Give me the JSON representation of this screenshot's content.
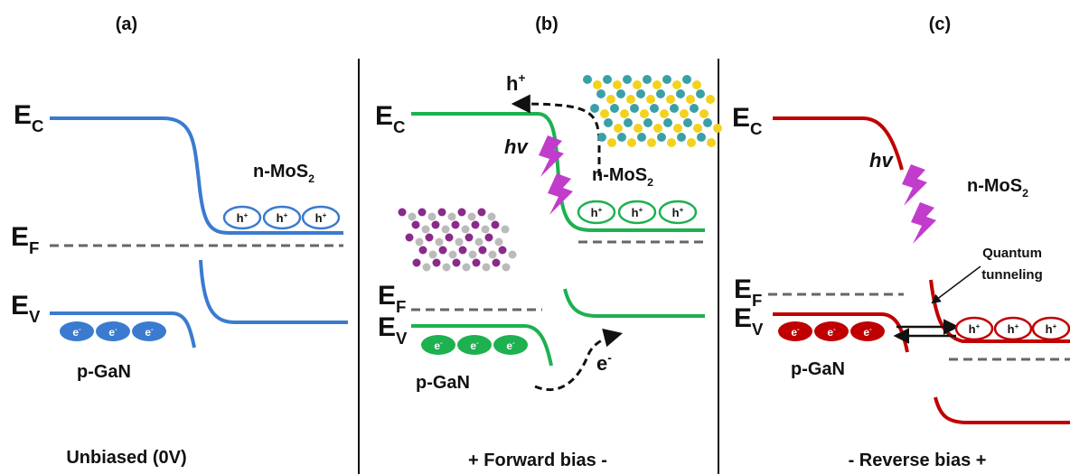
{
  "panels": [
    {
      "label": "(a)",
      "caption": "Unbiased (0V)",
      "ec": {
        "base": "E",
        "sub": "C"
      },
      "ef": {
        "base": "E",
        "sub": "F"
      },
      "ev": {
        "base": "E",
        "sub": "V"
      },
      "n_side": {
        "base": "n-MoS",
        "sub": "2"
      },
      "p_side": "p-GaN",
      "holes": [
        {
          "base": "h",
          "sup": "+"
        },
        {
          "base": "h",
          "sup": "+"
        },
        {
          "base": "h",
          "sup": "+"
        }
      ],
      "electrons": [
        {
          "base": "e",
          "sup": "-"
        },
        {
          "base": "e",
          "sup": "-"
        },
        {
          "base": "e",
          "sup": "-"
        }
      ]
    },
    {
      "label": "(b)",
      "caption": "+ Forward bias -",
      "ec": {
        "base": "E",
        "sub": "C"
      },
      "ef": {
        "base": "E",
        "sub": "F"
      },
      "ev": {
        "base": "E",
        "sub": "V"
      },
      "n_side": {
        "base": "n-MoS",
        "sub": "2"
      },
      "p_side": "p-GaN",
      "holes": [
        {
          "base": "h",
          "sup": "+"
        },
        {
          "base": "h",
          "sup": "+"
        },
        {
          "base": "h",
          "sup": "+"
        }
      ],
      "electrons": [
        {
          "base": "e",
          "sup": "-"
        },
        {
          "base": "e",
          "sup": "-"
        },
        {
          "base": "e",
          "sup": "-"
        }
      ],
      "photon": "hv",
      "hole_out": {
        "base": "h",
        "sup": "+"
      },
      "electron_in": {
        "base": "e",
        "sup": "-"
      }
    },
    {
      "label": "(c)",
      "caption": "- Reverse bias +",
      "ec": {
        "base": "E",
        "sub": "C"
      },
      "ef": {
        "base": "E",
        "sub": "F"
      },
      "ev": {
        "base": "E",
        "sub": "V"
      },
      "n_side": {
        "base": "n-MoS",
        "sub": "2"
      },
      "p_side": "p-GaN",
      "holes": [
        {
          "base": "h",
          "sup": "+"
        },
        {
          "base": "h",
          "sup": "+"
        },
        {
          "base": "h",
          "sup": "+"
        }
      ],
      "electrons": [
        {
          "base": "e",
          "sup": "-"
        },
        {
          "base": "e",
          "sup": "-"
        },
        {
          "base": "e",
          "sup": "-"
        }
      ],
      "photon": "hv",
      "tunneling": [
        "Quantum",
        "tunneling"
      ]
    }
  ]
}
